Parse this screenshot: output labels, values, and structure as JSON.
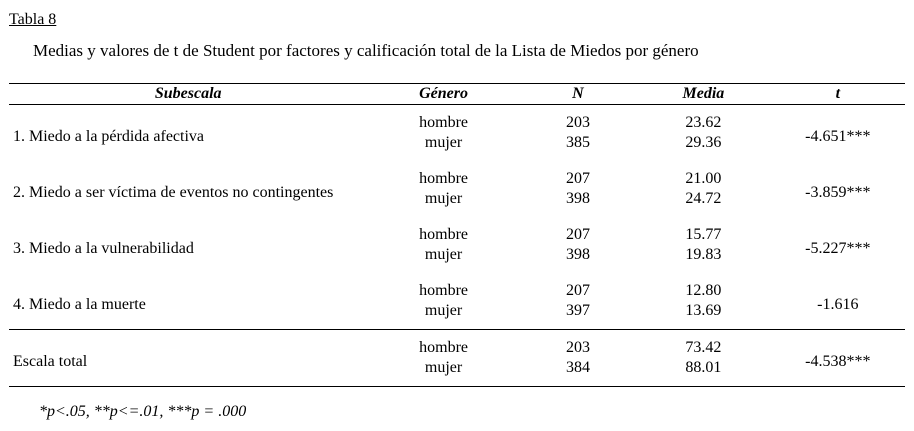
{
  "title": "Tabla 8",
  "caption": "Medias y valores de t de Student por factores y calificación total de la Lista de Miedos por género",
  "table": {
    "headers": {
      "subescala": "Subescala",
      "genero": "Género",
      "n": "N",
      "media": "Media",
      "t": "t"
    },
    "rows": [
      {
        "label": "1. Miedo a la pérdida afectiva",
        "genero1": "hombre",
        "n1": "203",
        "media1": "23.62",
        "genero2": "mujer",
        "n2": "385",
        "media2": "29.36",
        "t": "-4.651***"
      },
      {
        "label": "2. Miedo a ser víctima de eventos no contingentes",
        "genero1": "hombre",
        "n1": "207",
        "media1": "21.00",
        "genero2": "mujer",
        "n2": "398",
        "media2": "24.72",
        "t": "-3.859***"
      },
      {
        "label": "3. Miedo a la vulnerabilidad",
        "genero1": "hombre",
        "n1": "207",
        "media1": "15.77",
        "genero2": "mujer",
        "n2": "398",
        "media2": "19.83",
        "t": "-5.227***"
      },
      {
        "label": "4. Miedo a la muerte",
        "genero1": "hombre",
        "n1": "207",
        "media1": "12.80",
        "genero2": "mujer",
        "n2": "397",
        "media2": "13.69",
        "t": "-1.616"
      },
      {
        "label": "Escala total",
        "genero1": "hombre",
        "n1": "203",
        "media1": "73.42",
        "genero2": "mujer",
        "n2": "384",
        "media2": "88.01",
        "t": "-4.538***"
      }
    ]
  },
  "footnote": "*p<.05, **p<=.01, ***p = .000"
}
